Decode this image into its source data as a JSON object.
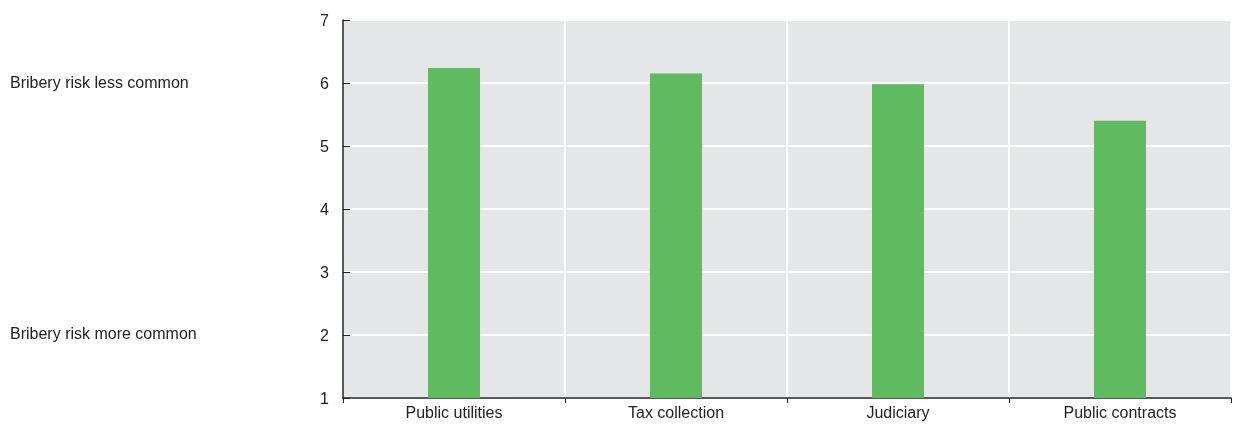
{
  "chart_data": {
    "type": "bar",
    "categories": [
      "Public utilities",
      "Tax collection",
      "Judiciary",
      "Public contracts"
    ],
    "values": [
      6.24,
      6.15,
      5.98,
      5.4
    ],
    "color": "#5ebb5f",
    "ylim": [
      1,
      7
    ],
    "yticks": [
      1,
      2,
      3,
      4,
      5,
      6,
      7
    ],
    "grid": true,
    "annotations": [
      "Bribery risk less common",
      "Bribery risk more common"
    ]
  }
}
